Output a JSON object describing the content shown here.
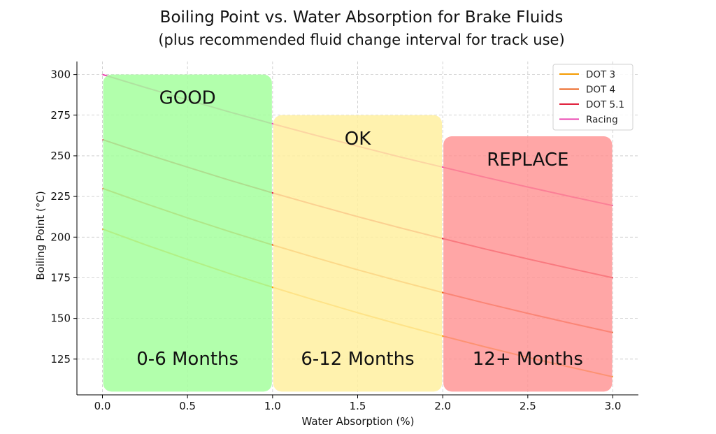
{
  "chart_data": {
    "type": "line",
    "title": "Boiling Point vs. Water Absorption for Brake Fluids",
    "subtitle": "(plus recommended fluid change interval for track use)",
    "xlabel": "Water Absorption (%)",
    "ylabel": "Boiling Point (°C)",
    "xlim": [
      -0.15,
      3.15
    ],
    "ylim": [
      103,
      308
    ],
    "grid": true,
    "legend_position": "top-right",
    "xticks": [
      0.0,
      0.5,
      1.0,
      1.5,
      2.0,
      2.5,
      3.0
    ],
    "xtick_labels": [
      "0.0",
      "0.5",
      "1.0",
      "1.5",
      "2.0",
      "2.5",
      "3.0"
    ],
    "yticks": [
      125,
      150,
      175,
      200,
      225,
      250,
      275,
      300
    ],
    "ytick_labels": [
      "125",
      "150",
      "175",
      "200",
      "225",
      "250",
      "275",
      "300"
    ],
    "x": [
      0.0,
      0.25,
      0.5,
      0.75,
      1.0,
      1.25,
      1.5,
      1.75,
      2.0,
      2.25,
      2.5,
      2.75,
      3.0
    ],
    "series": [
      {
        "name": "DOT 3",
        "color": "#f59b00",
        "values": [
          205,
          195.4,
          186.3,
          177.5,
          169.2,
          161.2,
          153.5,
          146.2,
          139.2,
          132.5,
          126.1,
          120,
          114.1
        ]
      },
      {
        "name": "DOT 4",
        "color": "#ea5a12",
        "values": [
          230,
          220.7,
          211.8,
          203.3,
          195.2,
          187.4,
          179.9,
          172.8,
          165.9,
          159.4,
          153.1,
          147.1,
          141.3
        ]
      },
      {
        "name": "DOT 5.1",
        "color": "#e0203c",
        "values": [
          260,
          251.3,
          243,
          234.9,
          227.2,
          219.8,
          212.6,
          205.7,
          199.1,
          192.7,
          186.6,
          180.7,
          175
        ]
      },
      {
        "name": "Racing",
        "color": "#ea3fae",
        "values": [
          300,
          292.1,
          284.4,
          276.9,
          269.7,
          262.7,
          255.9,
          249.3,
          243,
          236.8,
          230.8,
          225,
          219.4
        ]
      }
    ],
    "zones": [
      {
        "label": "GOOD",
        "interval": "0-6 Months",
        "x_start": 0.0,
        "x_end": 1.0,
        "y_start": 105,
        "y_end": 300,
        "color": "#a4ff9e",
        "opacity": 0.85
      },
      {
        "label": "OK",
        "interval": "6-12 Months",
        "x_start": 1.0,
        "x_end": 2.0,
        "y_start": 105,
        "y_end": 275,
        "color": "#fff0a0",
        "opacity": 0.85
      },
      {
        "label": "REPLACE",
        "interval": "12+ Months",
        "x_start": 2.0,
        "x_end": 3.0,
        "y_start": 105,
        "y_end": 262,
        "color": "#ff9090",
        "opacity": 0.8
      }
    ]
  }
}
